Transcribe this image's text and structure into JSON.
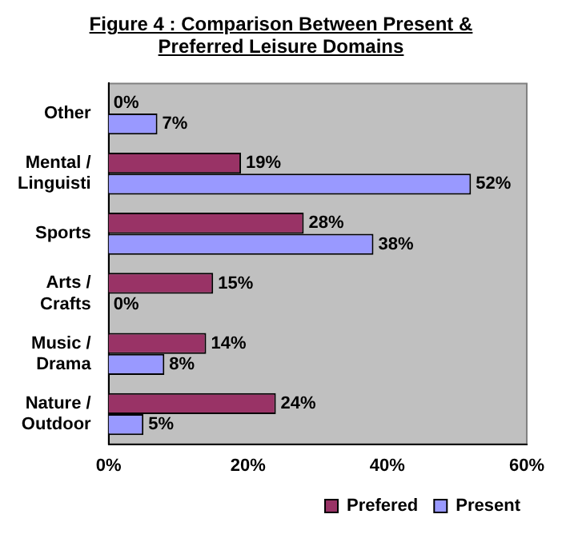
{
  "chart_data": {
    "type": "bar",
    "orientation": "horizontal",
    "title": "Figure 4 : Comparison Between Present & Preferred Leisure Domains",
    "categories": [
      "Other",
      "Mental / Linguisti",
      "Sports",
      "Arts / Crafts",
      "Music / Drama",
      "Nature / Outdoor"
    ],
    "series": [
      {
        "name": "Prefered",
        "color": "#993366",
        "values": [
          0,
          19,
          28,
          15,
          14,
          24
        ],
        "value_labels": [
          "0%",
          "19%",
          "28%",
          "15%",
          "14%",
          "24%"
        ]
      },
      {
        "name": "Present",
        "color": "#9999ff",
        "values": [
          7,
          52,
          38,
          0,
          8,
          5
        ],
        "value_labels": [
          "7%",
          "52%",
          "38%",
          "0%",
          "8%",
          "5%"
        ]
      }
    ],
    "xlim": [
      0,
      60
    ],
    "xticks": [
      {
        "value": 0,
        "label": "0%"
      },
      {
        "value": 20,
        "label": "20%"
      },
      {
        "value": 40,
        "label": "40%"
      },
      {
        "value": 60,
        "label": "60%"
      }
    ],
    "grid": false,
    "legend": "bottom right"
  }
}
